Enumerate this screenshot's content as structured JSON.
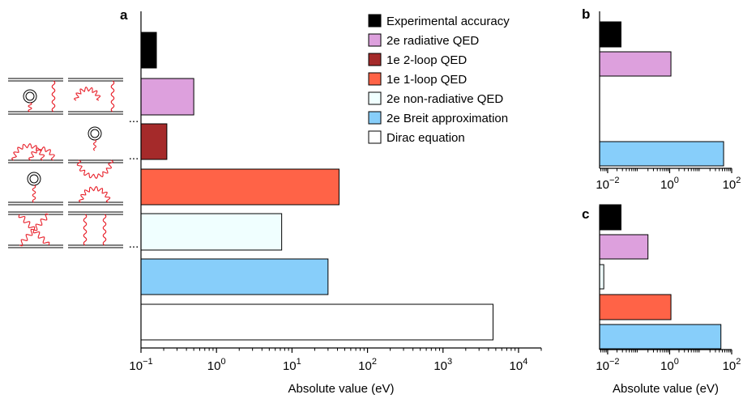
{
  "colors": {
    "experimental": "#000000",
    "radiative_2e": "#dda0dd",
    "loop2_1e": "#a52a2a",
    "loop1_1e": "#ff6347",
    "nonradiative_2e": "#f0ffff",
    "breit_2e": "#87cefa",
    "dirac": "#ffffff",
    "feynman_red": "#e8202a"
  },
  "legend": [
    {
      "key": "experimental",
      "label": "Experimental accuracy"
    },
    {
      "key": "radiative_2e",
      "label": "2e radiative QED"
    },
    {
      "key": "loop2_1e",
      "label": "1e 2-loop QED"
    },
    {
      "key": "loop1_1e",
      "label": "1e 1-loop QED"
    },
    {
      "key": "nonradiative_2e",
      "label": "2e non-radiative QED"
    },
    {
      "key": "breit_2e",
      "label": "2e Breit approximation"
    },
    {
      "key": "dirac",
      "label": "Dirac equation"
    }
  ],
  "diagrams": {
    "ellipsis": "..."
  },
  "chart_data": [
    {
      "panel": "a",
      "type": "bar",
      "orientation": "horizontal",
      "xscale": "log",
      "xlim": [
        0.1,
        20000
      ],
      "xlabel": "Absolute value (eV)",
      "xticks": [
        {
          "value": 0.1,
          "base": "10",
          "exp": "−1"
        },
        {
          "value": 1,
          "base": "10",
          "exp": "0"
        },
        {
          "value": 10,
          "base": "10",
          "exp": "1"
        },
        {
          "value": 100,
          "base": "10",
          "exp": "2"
        },
        {
          "value": 1000,
          "base": "10",
          "exp": "3"
        },
        {
          "value": 10000,
          "base": "10",
          "exp": "4"
        }
      ],
      "bars": [
        {
          "key": "experimental",
          "value": 0.16
        },
        {
          "key": "radiative_2e",
          "value": 0.5
        },
        {
          "key": "loop2_1e",
          "value": 0.22
        },
        {
          "key": "loop1_1e",
          "value": 42
        },
        {
          "key": "nonradiative_2e",
          "value": 7.3
        },
        {
          "key": "breit_2e",
          "value": 30
        },
        {
          "key": "dirac",
          "value": 4600
        }
      ]
    },
    {
      "panel": "b",
      "type": "bar",
      "orientation": "horizontal",
      "xscale": "log",
      "xlim": [
        0.0055,
        100
      ],
      "xlabel": "",
      "xticks": [
        {
          "value": 0.01,
          "base": "10",
          "exp": "−2"
        },
        {
          "value": 1,
          "base": "10",
          "exp": "0"
        },
        {
          "value": 100,
          "base": "10",
          "exp": "2"
        }
      ],
      "bars": [
        {
          "key": "experimental",
          "value": 0.027
        },
        {
          "key": "radiative_2e",
          "value": 1.1
        },
        {
          "key": "breit_2e",
          "value": 55
        }
      ]
    },
    {
      "panel": "c",
      "type": "bar",
      "orientation": "horizontal",
      "xscale": "log",
      "xlim": [
        0.0055,
        100
      ],
      "xlabel": "Absolute value (eV)",
      "xticks": [
        {
          "value": 0.01,
          "base": "10",
          "exp": "−2"
        },
        {
          "value": 1,
          "base": "10",
          "exp": "0"
        },
        {
          "value": 100,
          "base": "10",
          "exp": "2"
        }
      ],
      "bars": [
        {
          "key": "experimental",
          "value": 0.027
        },
        {
          "key": "radiative_2e",
          "value": 0.2
        },
        {
          "key": "nonradiative_2e",
          "value": 0.0075
        },
        {
          "key": "loop1_1e",
          "value": 1.1
        },
        {
          "key": "breit_2e",
          "value": 45
        }
      ]
    }
  ]
}
